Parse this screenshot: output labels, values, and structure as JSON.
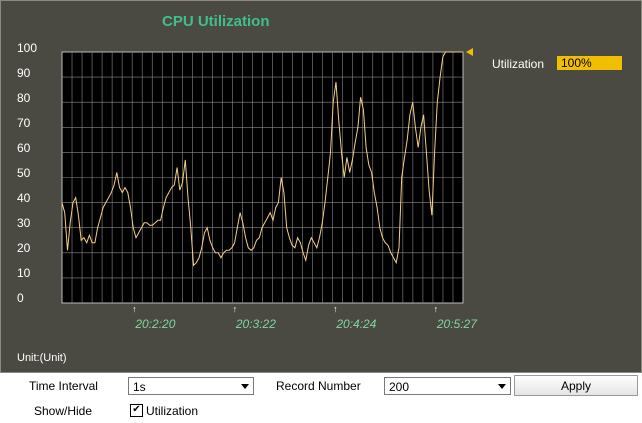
{
  "title": "CPU Utilization",
  "unit_label": "Unit:(Unit)",
  "legend": {
    "label": "Utilization",
    "value": "100%",
    "color": "#f0c000"
  },
  "controls": {
    "time_interval_label": "Time Interval",
    "time_interval_value": "1s",
    "record_number_label": "Record Number",
    "record_number_value": "200",
    "apply_label": "Apply",
    "show_hide_label": "Show/Hide",
    "utilization_checkbox_label": "Utilization",
    "utilization_checked": true
  },
  "chart_data": {
    "type": "line",
    "y_ticks": [
      "100",
      "90",
      "80",
      "70",
      "60",
      "50",
      "40",
      "30",
      "20",
      "10",
      "0"
    ],
    "ylim": [
      0,
      100
    ],
    "x_tick_labels": [
      {
        "label": "20:2:20",
        "index": 36
      },
      {
        "label": "20:3:22",
        "index": 86
      },
      {
        "label": "20:4:24",
        "index": 136
      },
      {
        "label": "20:5:27",
        "index": 186
      }
    ],
    "grid": true,
    "series": [
      {
        "name": "Utilization",
        "color": "#f5d080",
        "values": [
          40,
          36,
          21,
          32,
          40,
          42,
          35,
          25,
          26,
          24,
          27,
          24,
          24,
          30,
          34,
          38,
          40,
          42,
          44,
          47,
          52,
          46,
          44,
          46,
          44,
          38,
          30,
          26,
          28,
          30,
          32,
          32,
          31,
          31,
          32,
          33,
          33,
          38,
          42,
          44,
          46,
          47,
          54,
          45,
          48,
          57,
          42,
          30,
          15,
          16,
          18,
          22,
          28,
          30,
          25,
          22,
          20,
          20,
          18,
          20,
          21,
          21,
          22,
          24,
          30,
          36,
          32,
          26,
          22,
          21,
          22,
          25,
          26,
          30,
          32,
          34,
          36,
          33,
          38,
          40,
          50,
          44,
          30,
          26,
          23,
          22,
          26,
          24,
          20,
          17,
          23,
          26,
          24,
          22,
          26,
          32,
          40,
          50,
          60,
          80,
          88,
          73,
          60,
          50,
          58,
          52,
          57,
          64,
          70,
          82,
          77,
          62,
          55,
          52,
          44,
          38,
          30,
          26,
          24,
          23,
          20,
          18,
          16,
          22,
          50,
          58,
          65,
          75,
          80,
          70,
          62,
          70,
          75,
          60,
          45,
          35,
          60,
          80,
          90,
          98,
          100,
          100,
          100,
          100,
          100,
          100,
          100
        ]
      }
    ]
  }
}
